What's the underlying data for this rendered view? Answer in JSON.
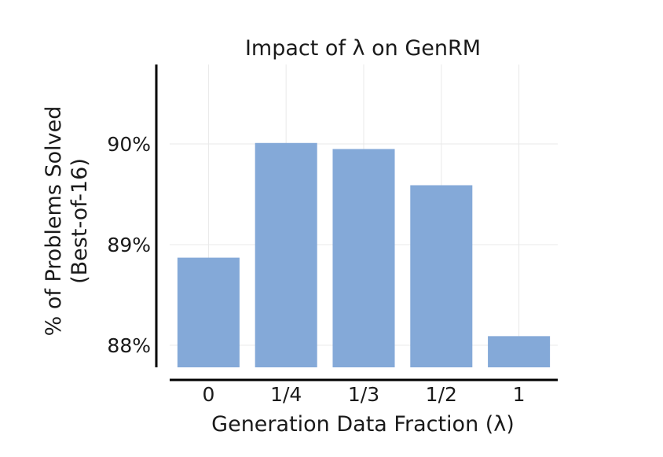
{
  "chart_data": {
    "type": "bar",
    "title": "Impact of λ on GenRM",
    "xlabel": "Generation Data Fraction (λ)",
    "ylabel_line1": "% of Problems Solved",
    "ylabel_line2": "(Best-of-16)",
    "categories": [
      "0",
      "1/4",
      "1/3",
      "1/2",
      "1"
    ],
    "values": [
      88.87,
      90.01,
      89.95,
      89.59,
      88.09
    ],
    "yticks": [
      88,
      89,
      90
    ],
    "ytick_labels": [
      "88%",
      "89%",
      "90%"
    ],
    "ylim": [
      87.78,
      90.79
    ],
    "bar_color": "#84a9d8",
    "grid": true
  }
}
